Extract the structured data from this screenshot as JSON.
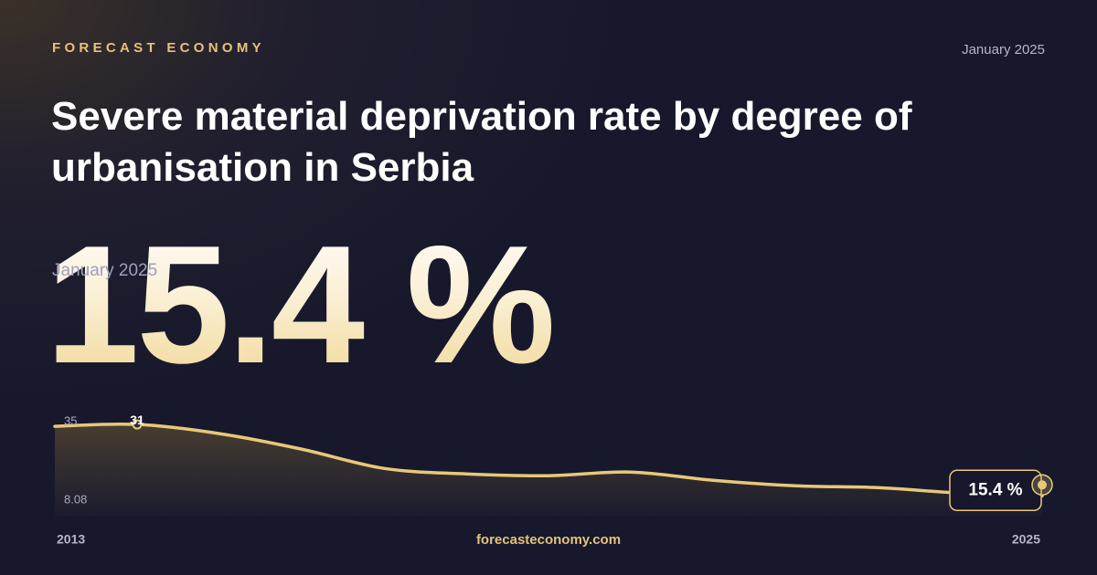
{
  "brand": "FORECAST ECONOMY",
  "date": "January 2025",
  "footer": "forecasteconomy.com",
  "chart_data": {
    "type": "line",
    "title": "Severe material deprivation rate by degree of urbanisation in Serbia",
    "x": [
      2013,
      2014,
      2015,
      2016,
      2017,
      2018,
      2019,
      2020,
      2021,
      2022,
      2023,
      2024,
      2025
    ],
    "values": [
      30.6,
      31,
      29,
      25.6,
      21.4,
      20.2,
      19.8,
      20.6,
      18.8,
      17.6,
      17.2,
      16.0,
      15.4
    ],
    "value_labels": [
      null,
      null,
      null,
      null,
      null,
      null,
      null,
      null,
      null,
      null,
      null,
      null,
      "15.4 %"
    ],
    "max_index": 1,
    "color": "#e8c878",
    "xlim": [
      2013,
      2025
    ],
    "xticks": [
      2013,
      2025
    ],
    "ylim": [
      8.08,
      35
    ],
    "yticks": [
      8.08,
      35
    ]
  }
}
